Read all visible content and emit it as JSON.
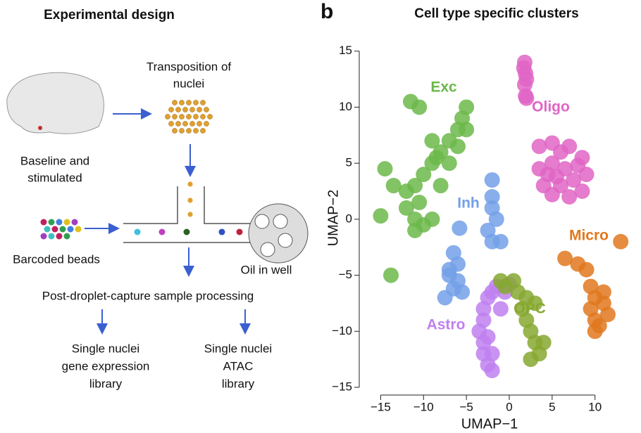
{
  "diagram": {
    "title": "Experimental design",
    "transposition": [
      "Transposition of",
      "nuclei"
    ],
    "condition": [
      "Baseline and",
      "stimulated"
    ],
    "beads": "Barcoded beads",
    "oil": "Oil in well",
    "processing": "Post-droplet-capture sample processing",
    "rna_library": [
      "Single nuclei",
      "gene expression",
      "library"
    ],
    "atac_library": [
      "Single nuclei",
      "ATAC",
      "library"
    ]
  },
  "panel_label": "b",
  "chart_data": {
    "type": "scatter",
    "title": "Cell type specific clusters",
    "x_label": "UMAP−1",
    "y_label": "UMAP−2",
    "xlim": [
      -17.5,
      12.9
    ],
    "ylim": [
      -15,
      15.8
    ],
    "xticks": [
      {
        "value": -15,
        "label": "−15"
      },
      {
        "value": -10,
        "label": "−10"
      },
      {
        "value": -5,
        "label": "−5"
      },
      0,
      5,
      10
    ],
    "yticks": [
      {
        "value": -15,
        "label": "−15"
      },
      {
        "value": -10,
        "label": "−10"
      },
      {
        "value": -5,
        "label": "−5"
      },
      0,
      5,
      10,
      15
    ],
    "series": [
      {
        "name": "Exc",
        "color": "#6cb84a",
        "x": [
          -11.5,
          -10.5,
          -5,
          -5.5,
          -6,
          -7,
          -8,
          -9,
          -10,
          -11,
          -12,
          -13.5,
          -14.5,
          -12,
          -11,
          -10,
          -9,
          -10.5,
          -8,
          -7,
          -9,
          -6,
          -5,
          -15,
          -13.8,
          -8.5,
          -11
        ],
        "y": [
          10.5,
          10,
          10,
          9,
          8,
          7,
          6,
          5,
          4,
          3,
          2.5,
          3,
          4.5,
          1,
          0,
          -0.5,
          0,
          1.5,
          3,
          5,
          7,
          6.5,
          8,
          0.3,
          -5,
          5.5,
          -1
        ]
      },
      {
        "name": "Oligo",
        "color": "#e065c4",
        "x": [
          1.8,
          1.9,
          1.8,
          1.9,
          2,
          1.7,
          2,
          3.5,
          5,
          7,
          8.5,
          9,
          8.5,
          7,
          5,
          4,
          3.5,
          5,
          6.5,
          7.5,
          6,
          4.5,
          8,
          6,
          5.5
        ],
        "y": [
          14,
          13,
          12,
          11,
          10.8,
          13.5,
          12.5,
          6.5,
          6.8,
          6.5,
          5.5,
          4,
          2.5,
          2,
          2.2,
          3,
          4.5,
          5,
          4.5,
          3.5,
          3,
          4,
          4.8,
          6,
          3.8
        ]
      },
      {
        "name": "Inh",
        "color": "#73a0e8",
        "x": [
          -2,
          -2,
          -2,
          -1.5,
          -2.5,
          -2,
          -1,
          -5.8,
          -6.5,
          -6,
          -7,
          -6,
          -5.5,
          -7.5,
          -6.5,
          -7
        ],
        "y": [
          3.5,
          2,
          1,
          0,
          -1,
          -2,
          -2,
          -0.8,
          -3,
          -4,
          -5,
          -5.5,
          -6.5,
          -7,
          -6.2,
          -4.5
        ]
      },
      {
        "name": "Micro",
        "color": "#e0781e",
        "x": [
          8,
          9,
          9.5,
          10,
          11,
          11.5,
          10,
          10,
          9.5,
          11,
          13,
          6.5,
          10.5
        ],
        "y": [
          -4,
          -4.5,
          -6,
          -7,
          -7.5,
          -8.5,
          -9,
          -10,
          -8,
          -6.5,
          -2,
          -3.5,
          -9.5
        ]
      },
      {
        "name": "Astro",
        "color": "#c080f0",
        "x": [
          -2,
          -2.5,
          -3,
          -3,
          -3.5,
          -3,
          -3,
          -2.5,
          -2,
          -2.5,
          -1,
          -0.5,
          0,
          -1.5,
          -2
        ],
        "y": [
          -6.5,
          -7,
          -8,
          -9,
          -10,
          -11,
          -12,
          -13,
          -13.5,
          -10.5,
          -8,
          -6.5,
          -5.8,
          -6,
          -12
        ]
      },
      {
        "name": "OPC",
        "color": "#86a830",
        "x": [
          -0.5,
          0.5,
          1,
          2,
          3,
          2,
          2.5,
          3,
          2.5,
          3.5,
          4,
          1.5,
          -1
        ],
        "y": [
          -6,
          -5.5,
          -6.5,
          -7,
          -7.5,
          -9,
          -10,
          -11,
          -12.5,
          -12,
          -11,
          -8,
          -5.5
        ]
      }
    ]
  }
}
